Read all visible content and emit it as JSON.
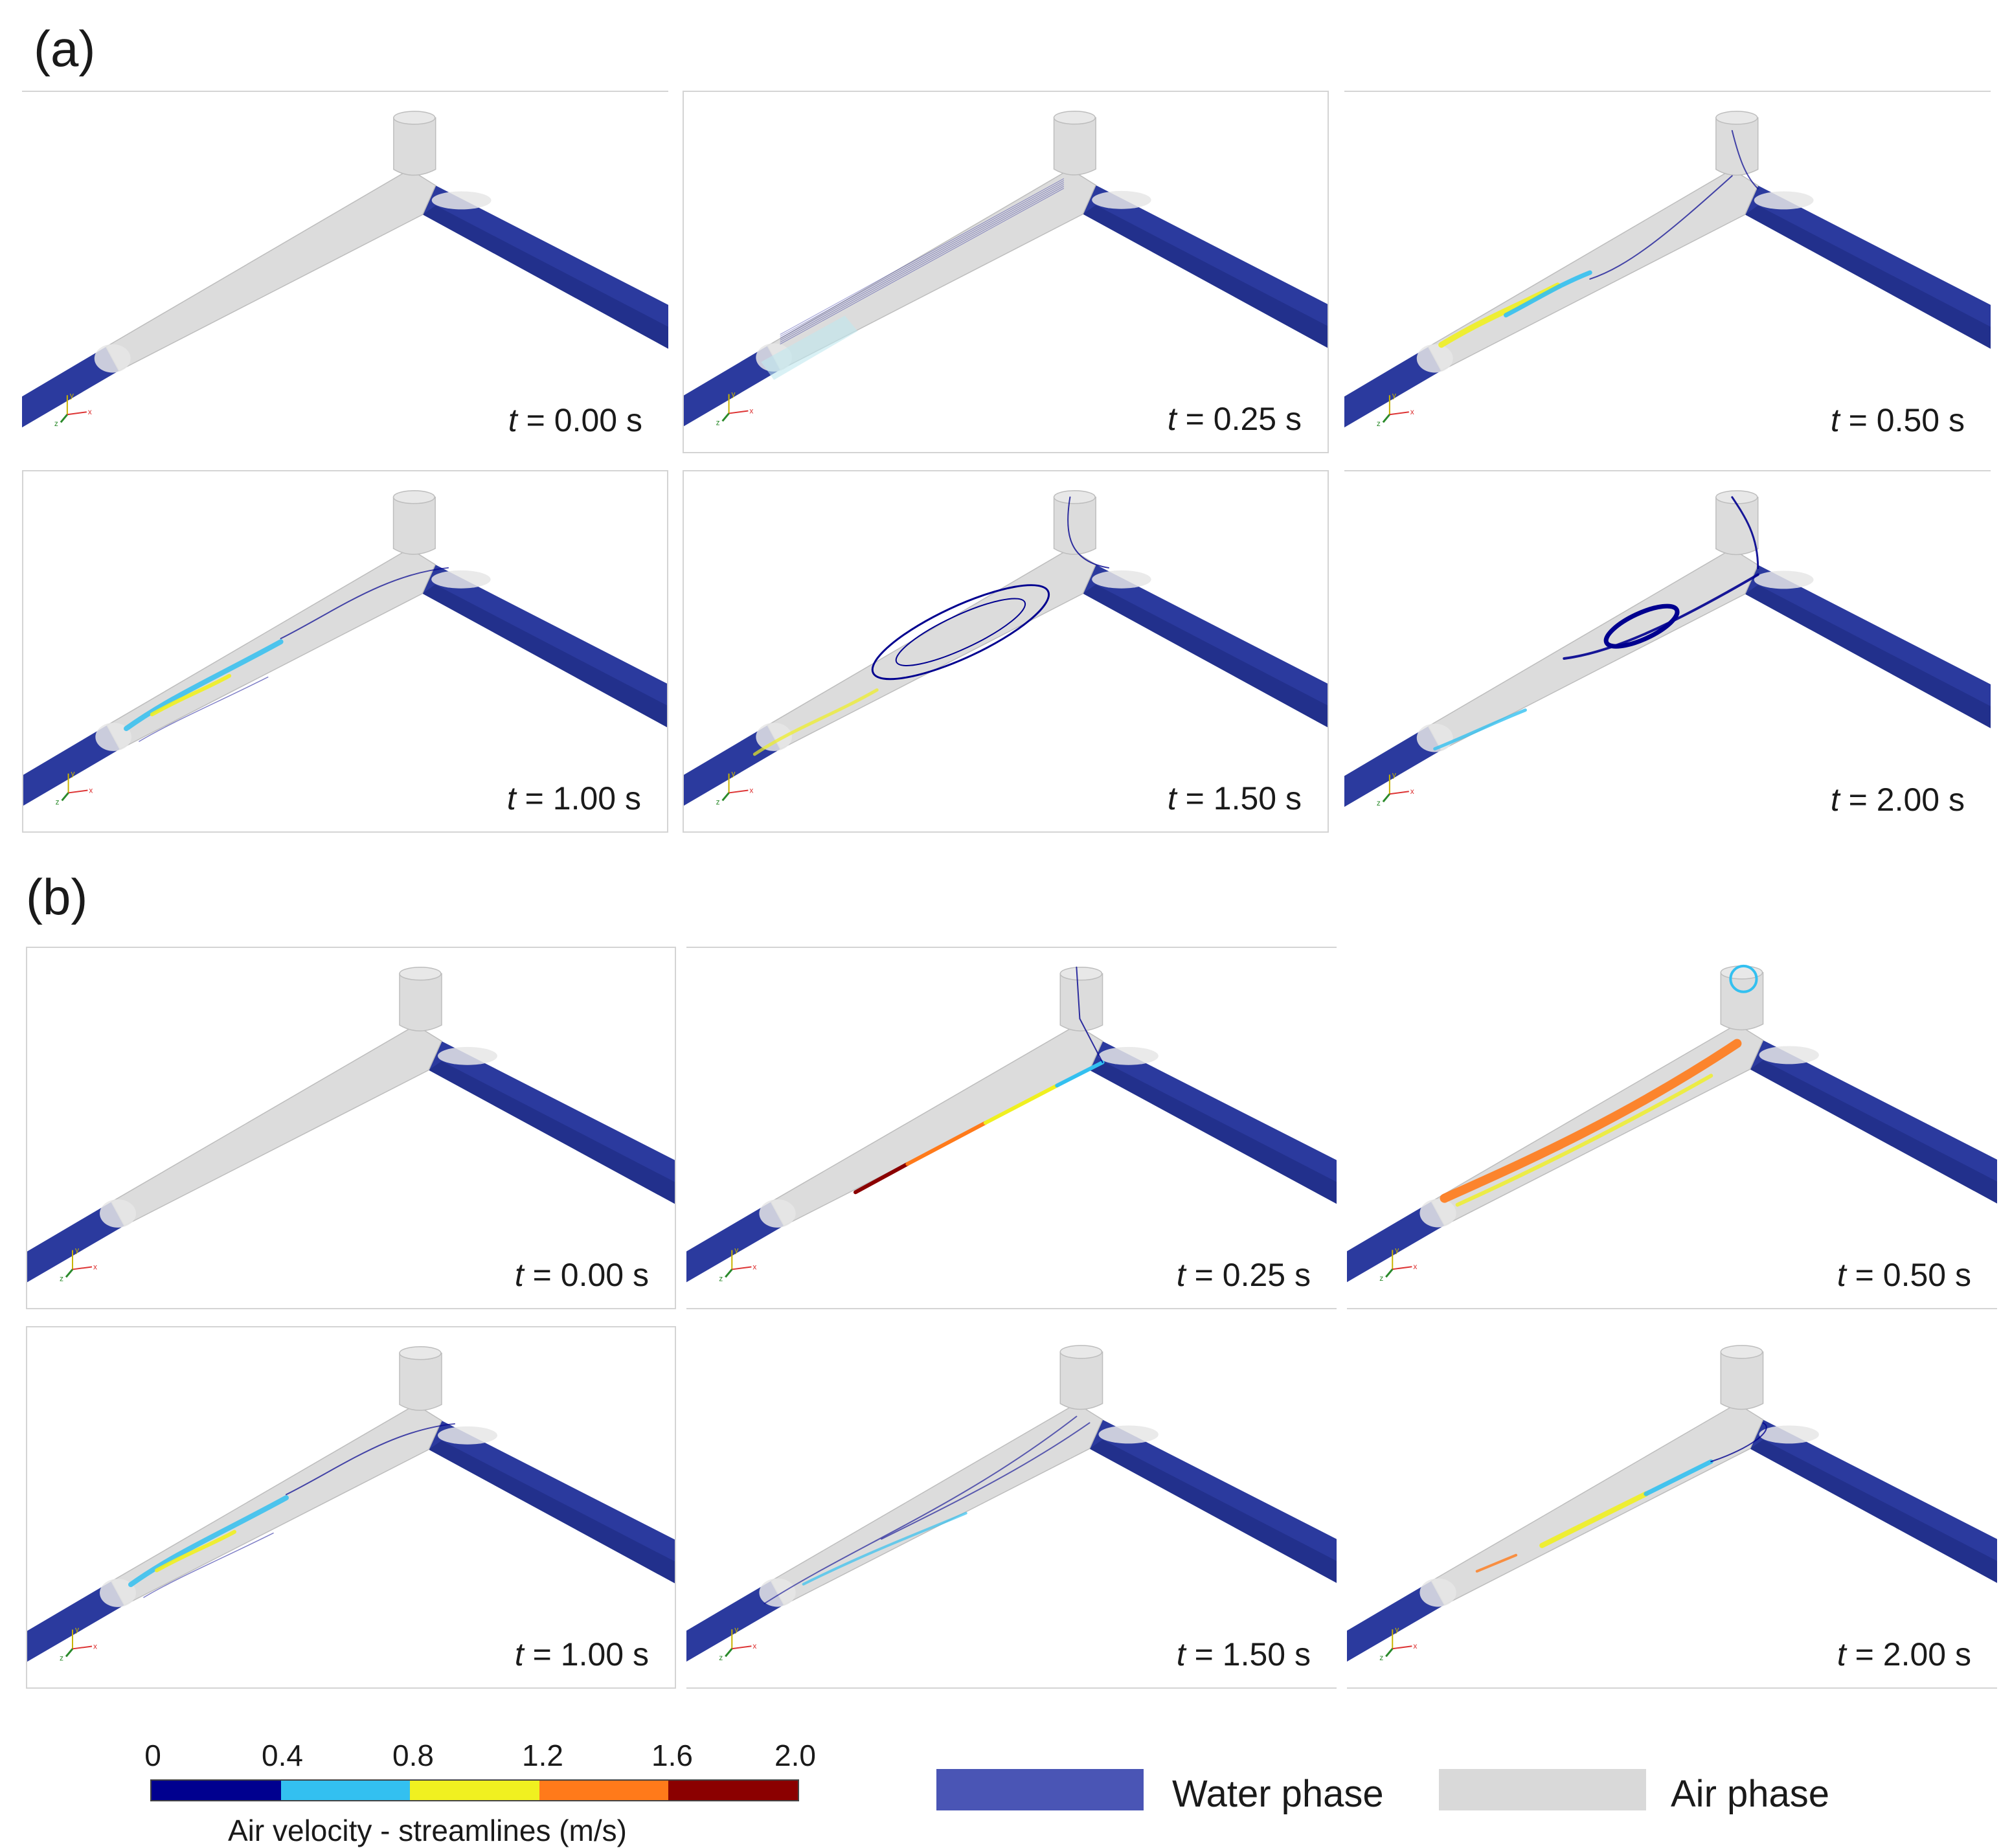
{
  "sections": [
    {
      "label": "(a)",
      "panels": [
        {
          "time": "0.00",
          "scene": "still"
        },
        {
          "time": "0.25",
          "scene": "faint"
        },
        {
          "time": "0.50",
          "scene": "early"
        },
        {
          "time": "1.00",
          "scene": "mid"
        },
        {
          "time": "1.50",
          "scene": "swirl"
        },
        {
          "time": "2.00",
          "scene": "vortex"
        }
      ]
    },
    {
      "label": "(b)",
      "panels": [
        {
          "time": "0.00",
          "scene": "still"
        },
        {
          "time": "0.25",
          "scene": "jet"
        },
        {
          "time": "0.50",
          "scene": "jetwide"
        },
        {
          "time": "1.00",
          "scene": "mid"
        },
        {
          "time": "1.50",
          "scene": "mixed"
        },
        {
          "time": "2.00",
          "scene": "recover"
        }
      ]
    }
  ],
  "time_prefix": "t",
  "time_unit": "s",
  "axis_triad": {
    "x": "x",
    "y": "y",
    "z": "z"
  },
  "colorbar": {
    "title": "Air velocity - streamlines (m/s)",
    "ticks": [
      "0",
      "0.4",
      "0.8",
      "1.2",
      "1.6",
      "2.0"
    ],
    "colors": [
      "#00008f",
      "#33c0f0",
      "#f0f020",
      "#ff7a1a",
      "#8b0000"
    ]
  },
  "phase_legend": [
    {
      "label": "Water phase",
      "color": "#4a55b5"
    },
    {
      "label": "Air phase",
      "color": "#d9d9d9"
    }
  ],
  "colors": {
    "water": "#2b3a9e",
    "water_dark": "#1c2a80",
    "air": "#dcdcdc",
    "air_edge": "#bdbdbd"
  }
}
